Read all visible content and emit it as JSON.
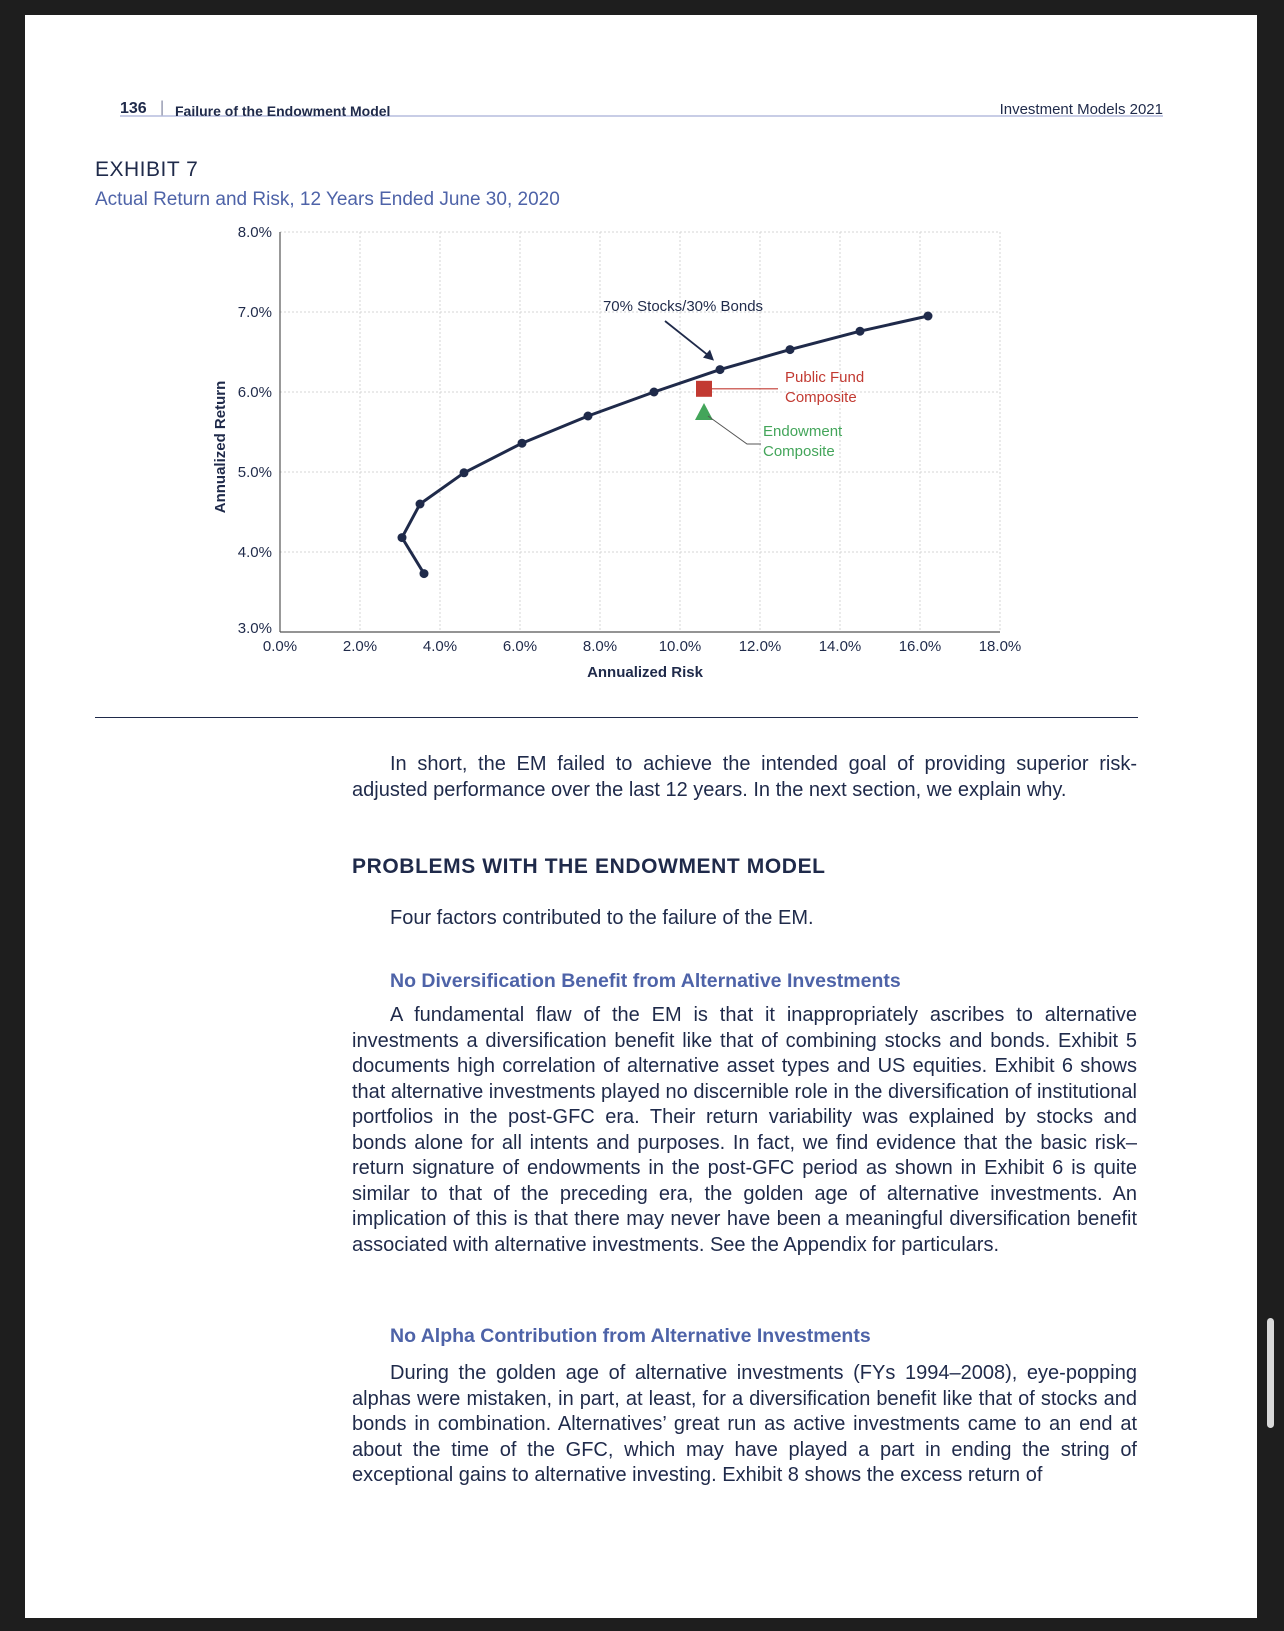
{
  "header": {
    "page_number": "136",
    "separator": "|",
    "section": "Failure of the Endowment Model",
    "publication": "Investment Models 2021"
  },
  "exhibit": {
    "label": "EXHIBIT 7",
    "title": "Actual Return and Risk, 12 Years Ended June 30, 2020"
  },
  "chart_data": {
    "type": "line",
    "xlabel": "Annualized Risk",
    "ylabel": "Annualized Return",
    "xlim": [
      0,
      18
    ],
    "ylim": [
      3,
      8
    ],
    "x_ticks": [
      "0.0%",
      "2.0%",
      "4.0%",
      "6.0%",
      "8.0%",
      "10.0%",
      "12.0%",
      "14.0%",
      "16.0%",
      "18.0%"
    ],
    "y_ticks": [
      "3.0%",
      "4.0%",
      "5.0%",
      "6.0%",
      "7.0%",
      "8.0%"
    ],
    "grid": true,
    "series": [
      {
        "color": "#1f2a4a",
        "points": [
          [
            3.6,
            3.73
          ],
          [
            3.05,
            4.18
          ],
          [
            3.5,
            4.6
          ],
          [
            4.6,
            4.99
          ],
          [
            6.05,
            5.36
          ],
          [
            7.7,
            5.7
          ],
          [
            9.35,
            6.0
          ],
          [
            11.0,
            6.28
          ],
          [
            12.75,
            6.53
          ],
          [
            14.5,
            6.76
          ],
          [
            16.2,
            6.95
          ]
        ]
      }
    ],
    "markers": [
      {
        "name": "Public Fund Composite",
        "shape": "square",
        "color": "#c23a32",
        "x": 10.6,
        "y": 6.04
      },
      {
        "name": "Endowment Composite",
        "shape": "triangle",
        "color": "#43a55a",
        "x": 10.6,
        "y": 5.75
      }
    ],
    "annotations": {
      "stocks_bonds": "70% Stocks/30% Bonds",
      "public_fund_line1": "Public Fund",
      "public_fund_line2": "Composite",
      "endowment_line1": "Endowment",
      "endowment_line2": "Composite"
    }
  },
  "body": {
    "intro": "In short, the EM failed to achieve the intended goal of providing superior risk-adjusted performance over the last 12 years. In the next section, we explain why.",
    "section_heading": "PROBLEMS WITH THE ENDOWMENT MODEL",
    "section_intro": "Four factors contributed to the failure of the EM.",
    "subheading1": "No Diversification Benefit from Alternative Investments",
    "paragraph1": "A fundamental flaw of the EM is that it inappropriately ascribes to alterna­tive investments a diversification benefit like that of combining stocks and bonds. Exhibit 5 documents high correlation of alternative asset types and US equities. Exhibit 6 shows that alternative investments played no discernible role in the diversification of institutional portfolios in the post-GFC era. Their return variability was explained by stocks and bonds alone for all intents and purposes. In fact, we find evidence that the basic risk–return signature of endowments in the post-GFC period as shown in Exhibit 6 is quite similar to that of the preceding era, the golden age of alternative investments. An implication of this is that there may never have been a meaningful diversification benefit associated with alternative investments. See the Appendix for particulars.",
    "subheading2": "No Alpha Contribution from Alternative Investments",
    "paragraph2": "During the golden age of alternative investments (FYs 1994–2008), eye-popping alphas were mistaken, in part, at least, for a diversification benefit like that of stocks and bonds in combination. Alternatives’ great run as active investments came to an end at about the time of the GFC, which may have played a part in ending the string of exceptional gains to alternative investing. Exhibit 8 shows the excess return of"
  }
}
